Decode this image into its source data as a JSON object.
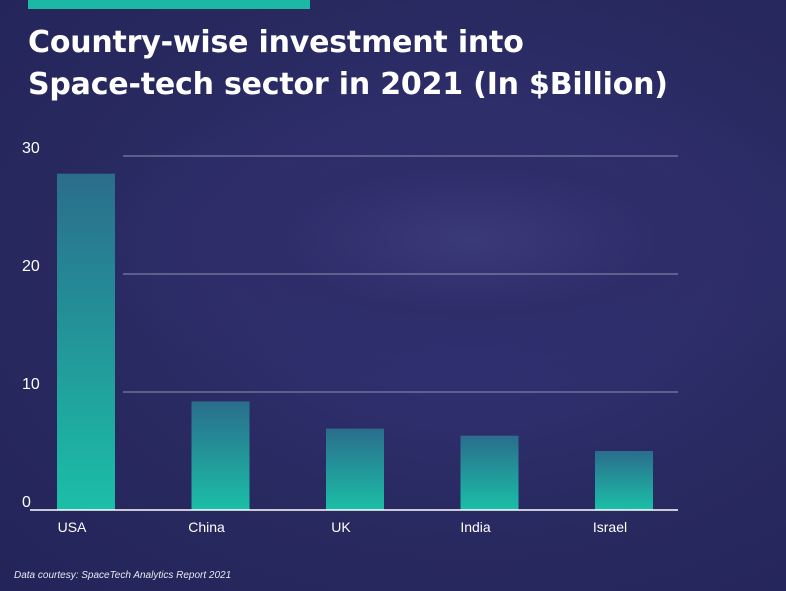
{
  "title_lines": [
    "Country-wise investment into",
    "Space-tech sector in 2021 (In $Billion)"
  ],
  "source_note": "Data courtesy: SpaceTech Analytics Report 2021",
  "colors": {
    "accent": "#1bb8a6",
    "bar_top": "#2a6d8c",
    "bar_bottom": "#1bbfa7",
    "grid": "#b9bcd6",
    "axis": "#ffffff"
  },
  "chart_data": {
    "type": "bar",
    "title": "Country-wise investment into Space-tech sector in 2021 (In $Billion)",
    "categories": [
      "USA",
      "China",
      "UK",
      "India",
      "Israel"
    ],
    "values": [
      28.5,
      9.2,
      6.9,
      6.3,
      5.0
    ],
    "ylim": [
      0,
      30
    ],
    "yticks": [
      "0",
      "10",
      "20",
      "30"
    ],
    "xlabel": "",
    "ylabel": "",
    "grid": true,
    "legend": false
  }
}
